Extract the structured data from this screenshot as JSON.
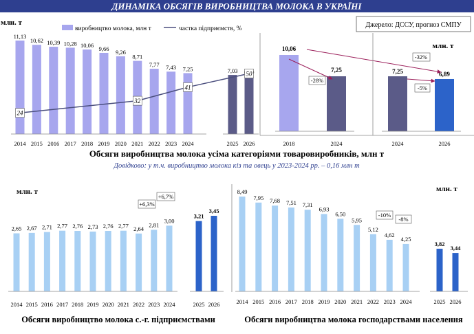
{
  "header": {
    "title": "ДИНАМІКА ОБСЯГІВ ВИРОБНИЦТВА МОЛОКА В УКРАЇНІ",
    "source": "Джерело: ДССУ, прогноз СМПУ"
  },
  "colors": {
    "header_bg": "#2e3f8f",
    "light_bar": "#a7a6ee",
    "dark_bar": "#5b5b88",
    "forecast_bar": "#2c63c9",
    "line": "#4b4f7e",
    "blue_bar_light": "#a8d0f4",
    "arrow": "#9b1f5a"
  },
  "captions": {
    "main": "Обсяги виробництва молока усіма категоріями товаровиробників, млн т",
    "note": "Довідково: у т.ч. виробництво молока  кіз та овець у 2023-2024 рр. – 0,16 млн т",
    "ent": "Обсяги виробництво молока с.-г. підприємствами",
    "hh": "Обсяги виробництва молока господарствами населення"
  },
  "chart_data": [
    {
      "id": "main",
      "type": "bar",
      "ylabel": "млн. т",
      "legend": [
        "виробництво молока, млн т",
        "частка підприємств, %"
      ],
      "categories": [
        "2014",
        "2015",
        "2016",
        "2017",
        "2018",
        "2019",
        "2020",
        "2021",
        "2022",
        "2023",
        "2024",
        "2025",
        "2026"
      ],
      "series": [
        {
          "name": "виробництво молока, млн т",
          "values": [
            11.13,
            10.62,
            10.39,
            10.28,
            10.06,
            9.66,
            9.26,
            8.71,
            7.77,
            7.43,
            7.25,
            7.03,
            6.89
          ]
        },
        {
          "name": "частка підприємств, %",
          "values": [
            24,
            null,
            null,
            null,
            null,
            null,
            null,
            32,
            null,
            null,
            41,
            null,
            50
          ]
        }
      ],
      "value_labels": [
        "11,13",
        "10,62",
        "10,39",
        "10,28",
        "10,06",
        "9,66",
        "9,26",
        "8,71",
        "7,77",
        "7,43",
        "7,25",
        "7,03",
        "6,89"
      ],
      "line_labels": [
        "24",
        "32",
        "41",
        "50"
      ],
      "ylim": [
        0,
        12
      ]
    },
    {
      "id": "compare_2018_2024",
      "type": "bar",
      "categories": [
        "2018",
        "2024"
      ],
      "values": [
        10.06,
        7.25
      ],
      "value_labels": [
        "10,06",
        "7,25"
      ],
      "annotations": [
        "-28%"
      ],
      "ylim": [
        0,
        12
      ]
    },
    {
      "id": "compare_2024_2026",
      "type": "bar",
      "ylabel": "млн. т",
      "categories": [
        "2024",
        "2026"
      ],
      "values": [
        7.25,
        6.89
      ],
      "value_labels": [
        "7,25",
        "6,89"
      ],
      "annotations": [
        "-32%",
        "-5%"
      ],
      "ylim": [
        0,
        12
      ]
    },
    {
      "id": "enterprises",
      "type": "bar",
      "ylabel": "млн. т",
      "categories": [
        "2014",
        "2015",
        "2016",
        "2017",
        "2018",
        "2019",
        "2020",
        "2021",
        "2022",
        "2023",
        "2024",
        "2025",
        "2026"
      ],
      "values": [
        2.65,
        2.67,
        2.71,
        2.77,
        2.76,
        2.73,
        2.76,
        2.77,
        2.64,
        2.81,
        3.0,
        3.21,
        3.45
      ],
      "value_labels": [
        "2,65",
        "2,67",
        "2,71",
        "2,77",
        "2,76",
        "2,73",
        "2,76",
        "2,77",
        "2,64",
        "2,81",
        "3,00",
        "3,21",
        "3,45"
      ],
      "annotations": [
        "+6,3%",
        "+6,7%"
      ],
      "ylim": [
        0,
        3.8
      ]
    },
    {
      "id": "households",
      "type": "bar",
      "ylabel": "млн. т",
      "categories": [
        "2014",
        "2015",
        "2016",
        "2017",
        "2018",
        "2019",
        "2020",
        "2021",
        "2022",
        "2023",
        "2024",
        "2025",
        "2026"
      ],
      "values": [
        8.49,
        7.95,
        7.68,
        7.51,
        7.31,
        6.93,
        6.5,
        5.95,
        5.12,
        4.62,
        4.25,
        3.82,
        3.44
      ],
      "value_labels": [
        "8,49",
        "7,95",
        "7,68",
        "7,51",
        "7,31",
        "6,93",
        "6,50",
        "5,95",
        "5,12",
        "4,62",
        "4,25",
        "3,82",
        "3,44"
      ],
      "annotations": [
        "-10%",
        "-8%"
      ],
      "ylim": [
        0,
        9
      ]
    }
  ]
}
